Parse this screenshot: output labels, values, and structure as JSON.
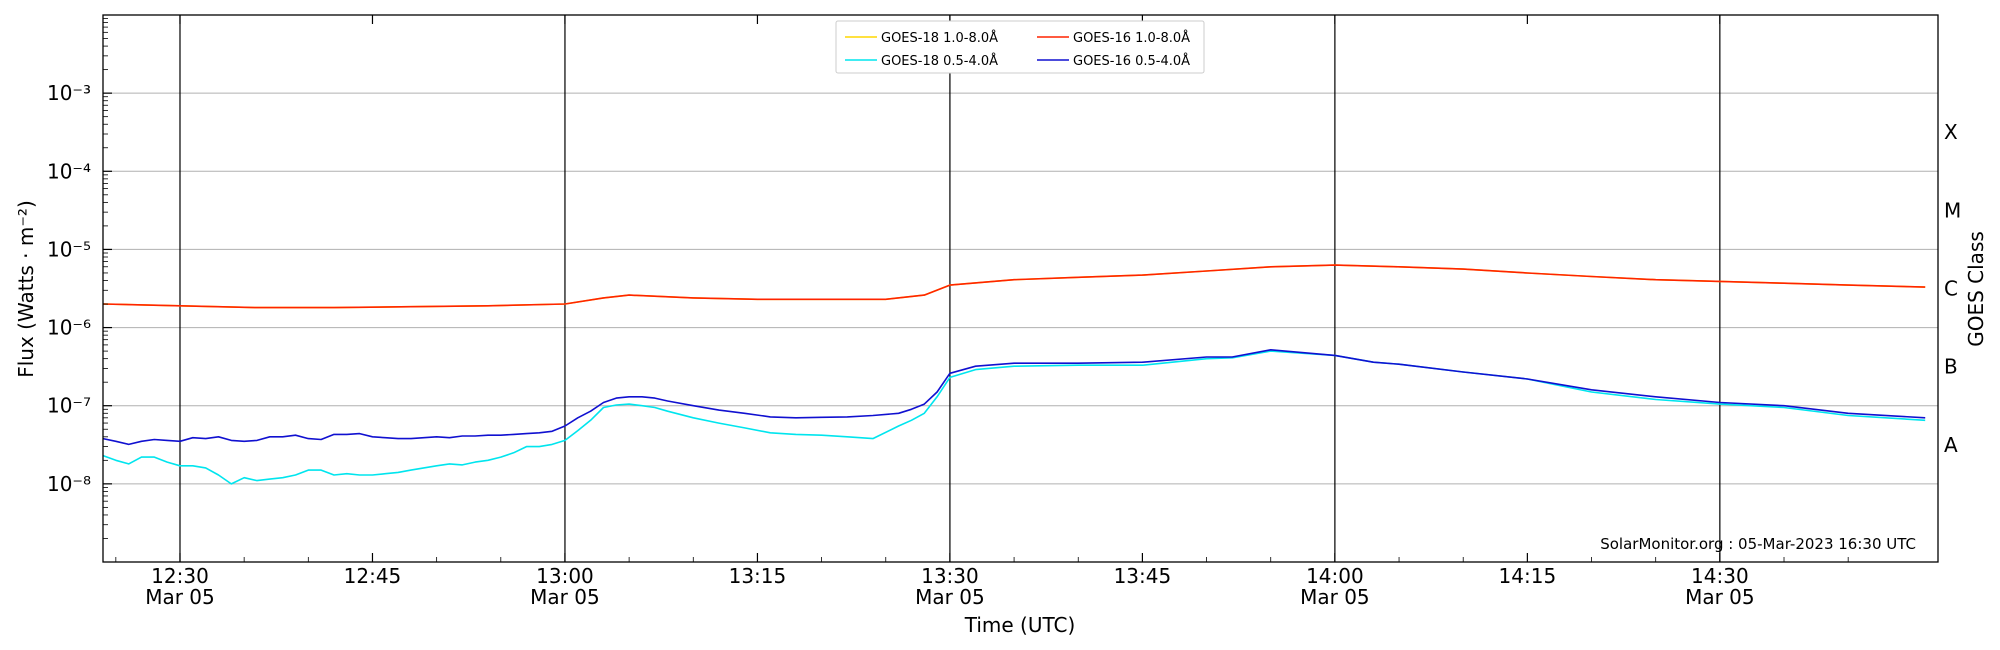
{
  "chart_data": {
    "type": "line",
    "xlabel": "Time (UTC)",
    "ylabel": "Flux (Watts · m⁻²)",
    "ylabel_right": "GOES Class",
    "y_scale": "log",
    "ylim": [
      1e-09,
      0.01
    ],
    "xlim": [
      "12:24",
      "14:47"
    ],
    "grid": "horizontal at each decade",
    "legend_position": "top-center",
    "credit": "SolarMonitor.org : 05-Mar-2023 16:30 UTC",
    "x_ticks": [
      {
        "time": "12:30",
        "label": "12:30",
        "date": "Mar 05"
      },
      {
        "time": "12:45",
        "label": "12:45",
        "date": ""
      },
      {
        "time": "13:00",
        "label": "13:00",
        "date": "Mar 05"
      },
      {
        "time": "13:15",
        "label": "13:15",
        "date": ""
      },
      {
        "time": "13:30",
        "label": "13:30",
        "date": "Mar 05"
      },
      {
        "time": "13:45",
        "label": "13:45",
        "date": ""
      },
      {
        "time": "14:00",
        "label": "14:00",
        "date": "Mar 05"
      },
      {
        "time": "14:15",
        "label": "14:15",
        "date": ""
      },
      {
        "time": "14:30",
        "label": "14:30",
        "date": "Mar 05"
      }
    ],
    "vertical_lines": [
      "12:30",
      "13:00",
      "13:30",
      "14:00",
      "14:30"
    ],
    "y_ticks": [
      {
        "value": 1e-08,
        "label": "10⁻⁸"
      },
      {
        "value": 1e-07,
        "label": "10⁻⁷"
      },
      {
        "value": 1e-06,
        "label": "10⁻⁶"
      },
      {
        "value": 1e-05,
        "label": "10⁻⁵"
      },
      {
        "value": 0.0001,
        "label": "10⁻⁴"
      },
      {
        "value": 0.001,
        "label": "10⁻³"
      }
    ],
    "class_labels": [
      {
        "value": 3.16e-08,
        "label": "A"
      },
      {
        "value": 3.16e-07,
        "label": "B"
      },
      {
        "value": 3.16e-06,
        "label": "C"
      },
      {
        "value": 3.16e-05,
        "label": "M"
      },
      {
        "value": 0.000316,
        "label": "X"
      }
    ],
    "series": [
      {
        "name": "GOES-18 1.0-8.0Å",
        "color": "#FFD700",
        "x": [
          "12:24",
          "12:30",
          "12:36",
          "12:42",
          "12:48",
          "12:54",
          "13:00",
          "13:03",
          "13:05",
          "13:10",
          "13:15",
          "13:20",
          "13:25",
          "13:28",
          "13:30",
          "13:35",
          "13:40",
          "13:45",
          "13:50",
          "13:55",
          "14:00",
          "14:05",
          "14:10",
          "14:15",
          "14:20",
          "14:25",
          "14:30",
          "14:35",
          "14:40",
          "14:46"
        ],
        "values": [
          2e-06,
          1.9e-06,
          1.8e-06,
          1.8e-06,
          1.85e-06,
          1.9e-06,
          2e-06,
          2.4e-06,
          2.6e-06,
          2.4e-06,
          2.3e-06,
          2.3e-06,
          2.3e-06,
          2.6e-06,
          3.5e-06,
          4.1e-06,
          4.4e-06,
          4.7e-06,
          5.3e-06,
          6e-06,
          6.3e-06,
          6e-06,
          5.6e-06,
          5e-06,
          4.5e-06,
          4.1e-06,
          3.9e-06,
          3.7e-06,
          3.5e-06,
          3.3e-06
        ]
      },
      {
        "name": "GOES-18 0.5-4.0Å",
        "color": "#00E5EE",
        "x": [
          "12:24",
          "12:25",
          "12:26",
          "12:27",
          "12:28",
          "12:29",
          "12:30",
          "12:31",
          "12:32",
          "12:33",
          "12:34",
          "12:35",
          "12:36",
          "12:37",
          "12:38",
          "12:39",
          "12:40",
          "12:41",
          "12:42",
          "12:43",
          "12:44",
          "12:45",
          "12:46",
          "12:47",
          "12:48",
          "12:49",
          "12:50",
          "12:51",
          "12:52",
          "12:53",
          "12:54",
          "12:55",
          "12:56",
          "12:57",
          "12:58",
          "12:59",
          "13:00",
          "13:01",
          "13:02",
          "13:03",
          "13:04",
          "13:05",
          "13:06",
          "13:07",
          "13:08",
          "13:10",
          "13:12",
          "13:14",
          "13:16",
          "13:18",
          "13:20",
          "13:22",
          "13:24",
          "13:26",
          "13:27",
          "13:28",
          "13:29",
          "13:30",
          "13:32",
          "13:35",
          "13:40",
          "13:45",
          "13:50",
          "13:52",
          "13:55",
          "14:00",
          "14:03",
          "14:05",
          "14:10",
          "14:15",
          "14:20",
          "14:25",
          "14:30",
          "14:35",
          "14:40",
          "14:46"
        ],
        "values": [
          2.3e-08,
          2e-08,
          1.8e-08,
          2.2e-08,
          2.2e-08,
          1.9e-08,
          1.7e-08,
          1.7e-08,
          1.6e-08,
          1.3e-08,
          1e-08,
          1.2e-08,
          1.1e-08,
          1.15e-08,
          1.2e-08,
          1.3e-08,
          1.5e-08,
          1.5e-08,
          1.3e-08,
          1.35e-08,
          1.3e-08,
          1.3e-08,
          1.35e-08,
          1.4e-08,
          1.5e-08,
          1.6e-08,
          1.7e-08,
          1.8e-08,
          1.75e-08,
          1.9e-08,
          2e-08,
          2.2e-08,
          2.5e-08,
          3e-08,
          3e-08,
          3.2e-08,
          3.6e-08,
          4.8e-08,
          6.5e-08,
          9.5e-08,
          1.02e-07,
          1.05e-07,
          1e-07,
          9.5e-08,
          8.5e-08,
          7e-08,
          6e-08,
          5.2e-08,
          4.5e-08,
          4.3e-08,
          4.2e-08,
          4e-08,
          3.8e-08,
          5.5e-08,
          6.5e-08,
          8e-08,
          1.3e-07,
          2.3e-07,
          2.9e-07,
          3.2e-07,
          3.3e-07,
          3.3e-07,
          4e-07,
          4.1e-07,
          5e-07,
          4.4e-07,
          3.6e-07,
          3.4e-07,
          2.7e-07,
          2.2e-07,
          1.5e-07,
          1.2e-07,
          1.05e-07,
          9.5e-08,
          7.5e-08,
          6.5e-08
        ]
      },
      {
        "name": "GOES-16 1.0-8.0Å",
        "color": "#FF2400",
        "x": [
          "12:24",
          "12:30",
          "12:36",
          "12:42",
          "12:48",
          "12:54",
          "13:00",
          "13:03",
          "13:05",
          "13:10",
          "13:15",
          "13:20",
          "13:25",
          "13:28",
          "13:30",
          "13:35",
          "13:40",
          "13:45",
          "13:50",
          "13:55",
          "14:00",
          "14:05",
          "14:10",
          "14:15",
          "14:20",
          "14:25",
          "14:30",
          "14:35",
          "14:40",
          "14:46"
        ],
        "values": [
          2e-06,
          1.9e-06,
          1.8e-06,
          1.8e-06,
          1.85e-06,
          1.9e-06,
          2e-06,
          2.4e-06,
          2.6e-06,
          2.4e-06,
          2.3e-06,
          2.3e-06,
          2.3e-06,
          2.6e-06,
          3.5e-06,
          4.1e-06,
          4.4e-06,
          4.7e-06,
          5.3e-06,
          6e-06,
          6.3e-06,
          6e-06,
          5.6e-06,
          5e-06,
          4.5e-06,
          4.1e-06,
          3.9e-06,
          3.7e-06,
          3.5e-06,
          3.3e-06
        ]
      },
      {
        "name": "GOES-16 0.5-4.0Å",
        "color": "#1010D0",
        "x": [
          "12:24",
          "12:25",
          "12:26",
          "12:27",
          "12:28",
          "12:29",
          "12:30",
          "12:31",
          "12:32",
          "12:33",
          "12:34",
          "12:35",
          "12:36",
          "12:37",
          "12:38",
          "12:39",
          "12:40",
          "12:41",
          "12:42",
          "12:43",
          "12:44",
          "12:45",
          "12:46",
          "12:47",
          "12:48",
          "12:49",
          "12:50",
          "12:51",
          "12:52",
          "12:53",
          "12:54",
          "12:55",
          "12:56",
          "12:57",
          "12:58",
          "12:59",
          "13:00",
          "13:01",
          "13:02",
          "13:03",
          "13:04",
          "13:05",
          "13:06",
          "13:07",
          "13:08",
          "13:10",
          "13:12",
          "13:14",
          "13:16",
          "13:18",
          "13:20",
          "13:22",
          "13:24",
          "13:26",
          "13:27",
          "13:28",
          "13:29",
          "13:30",
          "13:32",
          "13:35",
          "13:40",
          "13:45",
          "13:50",
          "13:52",
          "13:55",
          "14:00",
          "14:03",
          "14:05",
          "14:10",
          "14:15",
          "14:20",
          "14:25",
          "14:30",
          "14:35",
          "14:40",
          "14:46"
        ],
        "values": [
          3.8e-08,
          3.5e-08,
          3.2e-08,
          3.5e-08,
          3.7e-08,
          3.6e-08,
          3.5e-08,
          3.9e-08,
          3.8e-08,
          4e-08,
          3.6e-08,
          3.5e-08,
          3.6e-08,
          4e-08,
          4e-08,
          4.2e-08,
          3.8e-08,
          3.7e-08,
          4.3e-08,
          4.3e-08,
          4.4e-08,
          4e-08,
          3.9e-08,
          3.8e-08,
          3.8e-08,
          3.9e-08,
          4e-08,
          3.9e-08,
          4.1e-08,
          4.1e-08,
          4.2e-08,
          4.2e-08,
          4.3e-08,
          4.4e-08,
          4.5e-08,
          4.7e-08,
          5.5e-08,
          7e-08,
          8.5e-08,
          1.1e-07,
          1.25e-07,
          1.3e-07,
          1.3e-07,
          1.25e-07,
          1.15e-07,
          1e-07,
          8.8e-08,
          8e-08,
          7.2e-08,
          7e-08,
          7.1e-08,
          7.2e-08,
          7.5e-08,
          8e-08,
          9e-08,
          1.05e-07,
          1.5e-07,
          2.6e-07,
          3.2e-07,
          3.5e-07,
          3.5e-07,
          3.6e-07,
          4.2e-07,
          4.2e-07,
          5.2e-07,
          4.4e-07,
          3.6e-07,
          3.4e-07,
          2.7e-07,
          2.2e-07,
          1.6e-07,
          1.3e-07,
          1.1e-07,
          1e-07,
          8e-08,
          7e-08
        ]
      }
    ]
  }
}
